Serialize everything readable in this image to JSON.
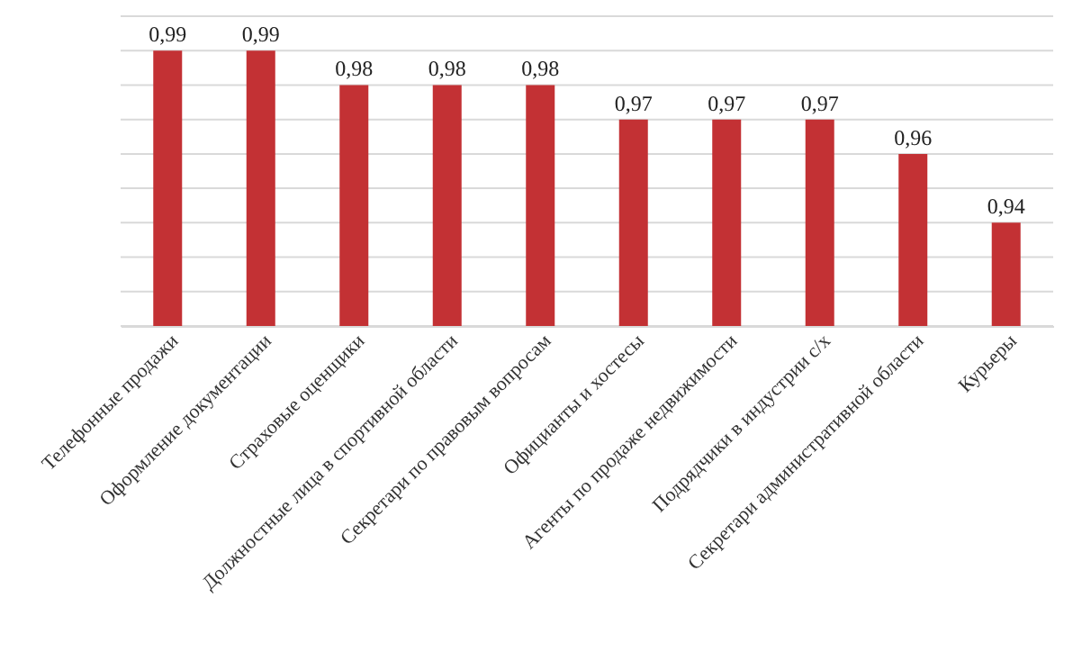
{
  "chart_data": {
    "type": "bar",
    "categories": [
      "Телефонные продажи",
      "Оформление  документации",
      "Страховые оценщики",
      "Должностные лица в спортивной области",
      "Секретари по правовым вопросам",
      "Официанты и хостесы",
      "Агенты по продаже недвижимости",
      "Подрядчики в индустрии с/х",
      "Секретари  административной области",
      "Курьеры"
    ],
    "values": [
      0.99,
      0.99,
      0.98,
      0.98,
      0.98,
      0.97,
      0.97,
      0.97,
      0.96,
      0.94
    ],
    "color": "#c33134",
    "ylim": [
      0.91,
      1.0
    ],
    "yticks": [
      {
        "value": 0.91,
        "label": null
      },
      {
        "value": 0.92,
        "label": null
      },
      {
        "value": 0.93,
        "label": null
      },
      {
        "value": 0.94,
        "label": null
      },
      {
        "value": 0.95,
        "label": null
      },
      {
        "value": 0.96,
        "label": null
      },
      {
        "value": 0.97,
        "label": null
      },
      {
        "value": 0.98,
        "label": null
      },
      {
        "value": 0.99,
        "label": null
      },
      {
        "value": 1.0,
        "label": null
      }
    ],
    "tick_labels": "x",
    "grid": "y",
    "value_labels": [
      "0,99",
      "0,99",
      "0,98",
      "0,98",
      "0,98",
      "0,97",
      "0,97",
      "0,97",
      "0,96",
      "0,94"
    ]
  }
}
